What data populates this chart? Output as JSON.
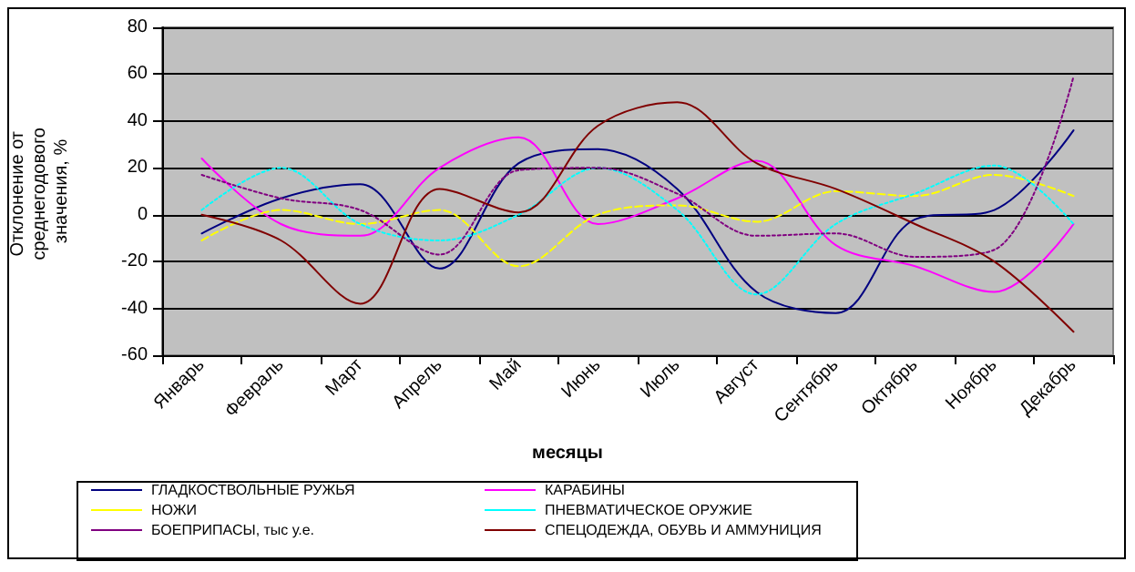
{
  "chart_data": {
    "type": "line",
    "xlabel": "месяцы",
    "ylabel": "Отклонение от среднегодового значения, %",
    "categories": [
      "Январь",
      "Февраль",
      "Март",
      "Апрель",
      "Май",
      "Июнь",
      "Июль",
      "Август",
      "Сентябрь",
      "Октябрь",
      "Ноябрь",
      "Декабрь"
    ],
    "series": [
      {
        "name": "ГЛАДКОСТВОЛЬНЫЕ РУЖЬЯ",
        "color": "#000080",
        "line_style": "solid",
        "values": [
          -8,
          7,
          13,
          -23,
          22,
          28,
          11,
          -33,
          -42,
          -2,
          2,
          36
        ]
      },
      {
        "name": "КАРАБИНЫ",
        "color": "#ff00ff",
        "line_style": "solid",
        "values": [
          24,
          -4,
          -9,
          20,
          33,
          -4,
          7,
          23,
          -13,
          -22,
          -33,
          -4
        ]
      },
      {
        "name": "НОЖИ",
        "color": "#ffff00",
        "line_style": "dashed",
        "values": [
          -11,
          2,
          -4,
          2,
          -22,
          0,
          4,
          -3,
          10,
          8,
          17,
          8
        ]
      },
      {
        "name": "ПНЕВМАТИЧЕСКОЕ ОРУЖИЕ",
        "color": "#00ffff",
        "line_style": "dotted",
        "values": [
          2,
          20,
          -4,
          -11,
          0,
          20,
          2,
          -34,
          -4,
          9,
          21,
          -4
        ]
      },
      {
        "name": "БОЕПРИПАСЫ, тыс у.е.",
        "color": "#800080",
        "line_style": "dotted",
        "values": [
          17,
          7,
          2,
          -17,
          19,
          20,
          9,
          -9,
          -8,
          -18,
          -15,
          59
        ]
      },
      {
        "name": "СПЕЦОДЕЖДА, ОБУВЬ И АММУНИЦИЯ",
        "color": "#800000",
        "line_style": "solid",
        "values": [
          0,
          -11,
          -38,
          11,
          1,
          38,
          48,
          22,
          11,
          -4,
          -20,
          -50
        ]
      }
    ],
    "ylim": [
      -60,
      80
    ],
    "yticks": [
      -60,
      -40,
      -20,
      0,
      20,
      40,
      60,
      80
    ],
    "grid": "y",
    "legend": "bottom",
    "marker": "none"
  }
}
